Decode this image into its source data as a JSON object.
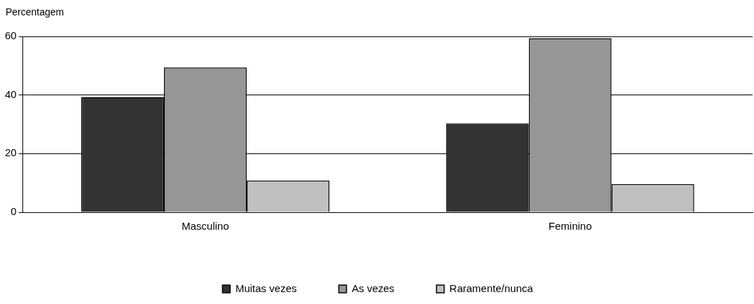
{
  "chart_data": {
    "type": "bar",
    "ylabel": "Percentagem",
    "categories": [
      "Masculino",
      "Feminino"
    ],
    "series": [
      {
        "name": "Muitas vezes",
        "color": "#333333",
        "values": [
          39.3,
          30.3
        ]
      },
      {
        "name": "As vezes",
        "color": "#969696",
        "values": [
          49.4,
          59.4
        ]
      },
      {
        "name": "Raramente/nunca",
        "color": "#c0c0c0",
        "values": [
          10.8,
          9.6
        ]
      }
    ],
    "ylim": [
      0,
      60
    ],
    "yticks": [
      0,
      20,
      40,
      60
    ],
    "grid": "y",
    "legend": "bottom"
  }
}
